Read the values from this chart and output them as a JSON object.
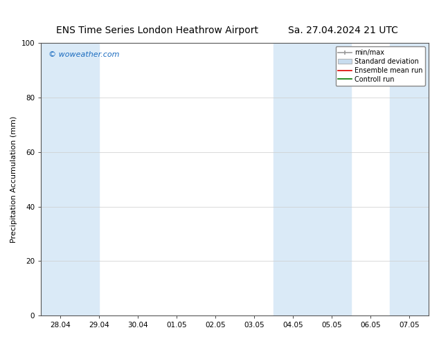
{
  "title_left": "ENS Time Series London Heathrow Airport",
  "title_right": "Sa. 27.04.2024 21 UTC",
  "ylabel": "Precipitation Accumulation (mm)",
  "watermark": "© woweather.com",
  "watermark_color": "#1a6bbf",
  "ylim": [
    0,
    100
  ],
  "yticks": [
    0,
    20,
    40,
    60,
    80,
    100
  ],
  "x_labels": [
    "28.04",
    "29.04",
    "30.04",
    "01.05",
    "02.05",
    "03.05",
    "04.05",
    "05.05",
    "06.05",
    "07.05"
  ],
  "background_color": "#ffffff",
  "plot_bg_color": "#ffffff",
  "band_color": "#daeaf7",
  "legend_labels": [
    "min/max",
    "Standard deviation",
    "Ensemble mean run",
    "Controll run"
  ],
  "legend_line_color": "#999999",
  "legend_std_color": "#c8dcee",
  "legend_mean_color": "#dd0000",
  "legend_ctrl_color": "#007700",
  "title_fontsize": 10,
  "axis_label_fontsize": 8,
  "tick_fontsize": 7.5,
  "legend_fontsize": 7
}
